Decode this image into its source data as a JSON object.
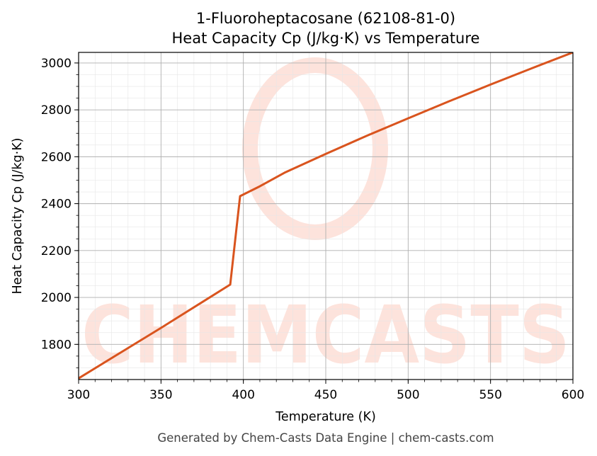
{
  "chart_data": {
    "type": "line",
    "title_line1": "1-Fluoroheptacosane (62108-81-0)",
    "title_line2": "Heat Capacity Cp (J/kg·K) vs Temperature",
    "xlabel": "Temperature (K)",
    "ylabel": "Heat Capacity Cp (J/kg·K)",
    "xlim": [
      300,
      600
    ],
    "ylim": [
      1650,
      3045
    ],
    "x_ticks": [
      300,
      350,
      400,
      450,
      500,
      550,
      600
    ],
    "y_ticks": [
      1800,
      2000,
      2200,
      2400,
      2600,
      2800,
      3000
    ],
    "grid": true,
    "series": [
      {
        "color": "#d9541e",
        "x": [
          300,
          325,
          350,
          375,
          392,
          398,
          410,
          425,
          450,
          475,
          500,
          525,
          550,
          575,
          600
        ],
        "y": [
          1655,
          1763,
          1870,
          1980,
          2055,
          2432,
          2474,
          2532,
          2612,
          2690,
          2764,
          2837,
          2908,
          2977,
          3045
        ]
      }
    ]
  },
  "watermark": {
    "text": "CHEMCASTS",
    "color": "#fde3dc"
  },
  "footer": "Generated by Chem-Casts Data Engine | chem-casts.com"
}
